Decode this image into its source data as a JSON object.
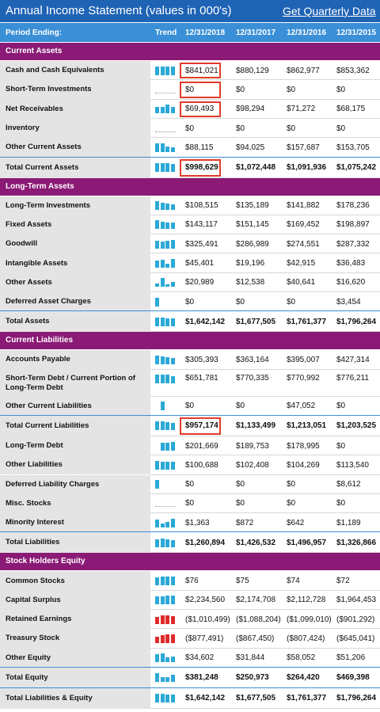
{
  "title": "Annual Income Statement (values in 000's)",
  "quarterly_link": "Get Quarterly Data",
  "header": {
    "period_label": "Period Ending:",
    "trend_label": "Trend",
    "periods": [
      "12/31/2018",
      "12/31/2017",
      "12/31/2016",
      "12/31/2015"
    ]
  },
  "colors": {
    "title_bg": "#1f63b5",
    "header_bg": "#3a8fd6",
    "section_bg": "#8a1a75",
    "trend_up": "#2aa9d6",
    "trend_negative": "#e02a2a",
    "highlight": "#e03c2a"
  },
  "rows": [
    {
      "type": "section",
      "label": "Current Assets"
    },
    {
      "type": "row",
      "label": "Cash and Cash Equivalents",
      "values": [
        "$841,021",
        "$880,129",
        "$862,977",
        "$853,362"
      ],
      "highlight": true
    },
    {
      "type": "row",
      "label": "Short-Term Investments",
      "values": [
        "$0",
        "$0",
        "$0",
        "$0"
      ],
      "highlight": true
    },
    {
      "type": "row",
      "label": "Net Receivables",
      "values": [
        "$69,493",
        "$98,294",
        "$71,272",
        "$68,175"
      ],
      "highlight": true
    },
    {
      "type": "row",
      "label": "Inventory",
      "values": [
        "$0",
        "$0",
        "$0",
        "$0"
      ]
    },
    {
      "type": "row",
      "label": "Other Current Assets",
      "values": [
        "$88,115",
        "$94,025",
        "$157,687",
        "$153,705"
      ]
    },
    {
      "type": "total",
      "label": "Total Current Assets",
      "values": [
        "$998,629",
        "$1,072,448",
        "$1,091,936",
        "$1,075,242"
      ],
      "highlight": true
    },
    {
      "type": "section",
      "label": "Long-Term Assets"
    },
    {
      "type": "row",
      "label": "Long-Term Investments",
      "values": [
        "$108,515",
        "$135,189",
        "$141,882",
        "$178,236"
      ]
    },
    {
      "type": "row",
      "label": "Fixed Assets",
      "values": [
        "$143,117",
        "$151,145",
        "$169,452",
        "$198,897"
      ]
    },
    {
      "type": "row",
      "label": "Goodwill",
      "values": [
        "$325,491",
        "$286,989",
        "$274,551",
        "$287,332"
      ]
    },
    {
      "type": "row",
      "label": "Intangible Assets",
      "values": [
        "$45,401",
        "$19,196",
        "$42,915",
        "$36,483"
      ]
    },
    {
      "type": "row",
      "label": "Other Assets",
      "values": [
        "$20,989",
        "$12,538",
        "$40,641",
        "$16,620"
      ]
    },
    {
      "type": "row",
      "label": "Deferred Asset Charges",
      "values": [
        "$0",
        "$0",
        "$0",
        "$3,454"
      ]
    },
    {
      "type": "total",
      "label": "Total Assets",
      "values": [
        "$1,642,142",
        "$1,677,505",
        "$1,761,377",
        "$1,796,264"
      ]
    },
    {
      "type": "section",
      "label": "Current Liabilities"
    },
    {
      "type": "row",
      "label": "Accounts Payable",
      "values": [
        "$305,393",
        "$363,164",
        "$395,007",
        "$427,314"
      ]
    },
    {
      "type": "row",
      "label": "Short-Term Debt / Current Portion of Long-Term Debt",
      "values": [
        "$651,781",
        "$770,335",
        "$770,992",
        "$776,211"
      ],
      "tall": true
    },
    {
      "type": "row",
      "label": "Other Current Liabilities",
      "values": [
        "$0",
        "$0",
        "$47,052",
        "$0"
      ]
    },
    {
      "type": "total",
      "label": "Total Current Liabilities",
      "values": [
        "$957,174",
        "$1,133,499",
        "$1,213,051",
        "$1,203,525"
      ],
      "highlight": true
    },
    {
      "type": "row",
      "label": "Long-Term Debt",
      "values": [
        "$201,669",
        "$189,753",
        "$178,995",
        "$0"
      ]
    },
    {
      "type": "row",
      "label": "Other Liabilities",
      "values": [
        "$100,688",
        "$102,408",
        "$104,269",
        "$113,540"
      ]
    },
    {
      "type": "row",
      "label": "Deferred Liability Charges",
      "values": [
        "$0",
        "$0",
        "$0",
        "$8,612"
      ]
    },
    {
      "type": "row",
      "label": "Misc. Stocks",
      "values": [
        "$0",
        "$0",
        "$0",
        "$0"
      ]
    },
    {
      "type": "row",
      "label": "Minority Interest",
      "values": [
        "$1,363",
        "$872",
        "$642",
        "$1,189"
      ]
    },
    {
      "type": "total",
      "label": "Total Liabilities",
      "values": [
        "$1,260,894",
        "$1,426,532",
        "$1,496,957",
        "$1,326,866"
      ]
    },
    {
      "type": "section",
      "label": "Stock Holders Equity"
    },
    {
      "type": "row",
      "label": "Common Stocks",
      "values": [
        "$76",
        "$75",
        "$74",
        "$72"
      ]
    },
    {
      "type": "row",
      "label": "Capital Surplus",
      "values": [
        "$2,234,560",
        "$2,174,708",
        "$2,112,728",
        "$1,964,453"
      ]
    },
    {
      "type": "row",
      "label": "Retained Earnings",
      "values": [
        "($1,010,499)",
        "($1,088,204)",
        "($1,099,010)",
        "($901,292)"
      ]
    },
    {
      "type": "row",
      "label": "Treasury Stock",
      "values": [
        "($877,491)",
        "($867,450)",
        "($807,424)",
        "($645,041)"
      ]
    },
    {
      "type": "row",
      "label": "Other Equity",
      "values": [
        "$34,602",
        "$31,844",
        "$58,052",
        "$51,206"
      ]
    },
    {
      "type": "total",
      "label": "Total Equity",
      "values": [
        "$381,248",
        "$250,973",
        "$264,420",
        "$469,398"
      ]
    },
    {
      "type": "total",
      "label": "Total Liabilities & Equity",
      "values": [
        "$1,642,142",
        "$1,677,505",
        "$1,761,377",
        "$1,796,264"
      ]
    }
  ]
}
